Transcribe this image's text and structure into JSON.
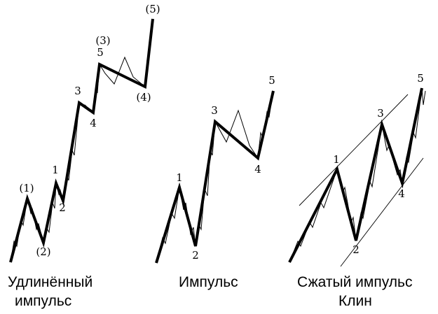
{
  "panels": [
    {
      "id": "extended",
      "caption_line1": "Удлинённый",
      "caption_line2": "импульс",
      "labels": [
        "(1)",
        "(2)",
        "1",
        "2",
        "3",
        "4",
        "(3)",
        "5",
        "(4)",
        "(5)"
      ]
    },
    {
      "id": "impulse",
      "caption_line1": "Импульс",
      "labels": [
        "1",
        "2",
        "3",
        "4",
        "5"
      ]
    },
    {
      "id": "wedge",
      "caption_line1": "Сжатый импульс",
      "caption_line2": "Клин",
      "labels": [
        "1",
        "2",
        "3",
        "4",
        "5"
      ]
    }
  ]
}
